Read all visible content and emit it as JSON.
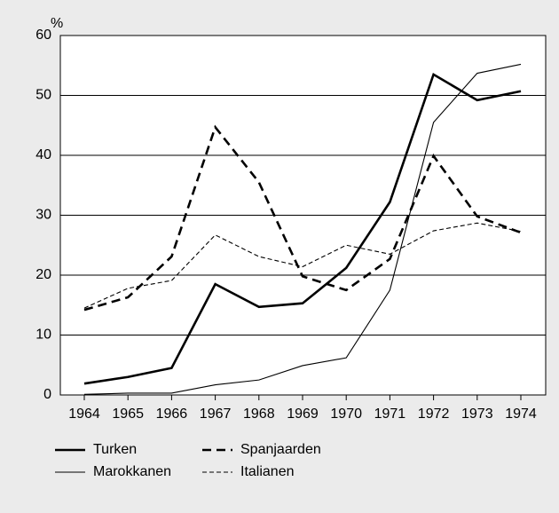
{
  "chart_data": {
    "type": "line",
    "y_unit": "%",
    "categories": [
      "1964",
      "1965",
      "1966",
      "1967",
      "1968",
      "1969",
      "1970",
      "1971",
      "1972",
      "1973",
      "1974"
    ],
    "ylim": [
      0,
      60
    ],
    "yticks": [
      0,
      10,
      20,
      30,
      40,
      50,
      60
    ],
    "grid": true,
    "series": [
      {
        "name": "Turken",
        "color": "#000000",
        "width": 2.6,
        "dash": false,
        "values": [
          1.9,
          3.0,
          4.5,
          18.5,
          14.7,
          15.3,
          21.2,
          32.2,
          53.5,
          49.2,
          50.7
        ]
      },
      {
        "name": "Spanjaarden",
        "color": "#000000",
        "width": 2.6,
        "dash": true,
        "values": [
          14.2,
          16.3,
          23.1,
          44.7,
          35.5,
          19.8,
          17.5,
          22.7,
          39.9,
          29.8,
          27.1
        ]
      },
      {
        "name": "Marokkanen",
        "color": "#000000",
        "width": 1.1,
        "dash": false,
        "values": [
          0.1,
          0.3,
          0.3,
          1.7,
          2.5,
          4.9,
          6.2,
          17.5,
          45.5,
          53.7,
          55.2
        ]
      },
      {
        "name": "Italianen",
        "color": "#000000",
        "width": 1.1,
        "dash": true,
        "values": [
          14.5,
          17.8,
          19.1,
          26.7,
          23.1,
          21.4,
          25.0,
          23.5,
          27.4,
          28.7,
          27.3
        ]
      }
    ]
  }
}
